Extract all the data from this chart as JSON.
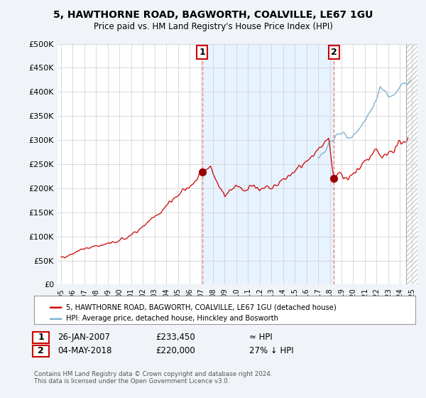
{
  "title": "5, HAWTHORNE ROAD, BAGWORTH, COALVILLE, LE67 1GU",
  "subtitle": "Price paid vs. HM Land Registry's House Price Index (HPI)",
  "ylim": [
    0,
    500000
  ],
  "yticks": [
    0,
    50000,
    100000,
    150000,
    200000,
    250000,
    300000,
    350000,
    400000,
    450000,
    500000
  ],
  "ytick_labels": [
    "£0",
    "£50K",
    "£100K",
    "£150K",
    "£200K",
    "£250K",
    "£300K",
    "£350K",
    "£400K",
    "£450K",
    "£500K"
  ],
  "xlim_start": 1994.7,
  "xlim_end": 2025.5,
  "xtick_years": [
    1995,
    1996,
    1997,
    1998,
    1999,
    2000,
    2001,
    2002,
    2003,
    2004,
    2005,
    2006,
    2007,
    2008,
    2009,
    2010,
    2011,
    2012,
    2013,
    2014,
    2015,
    2016,
    2017,
    2018,
    2019,
    2020,
    2021,
    2022,
    2023,
    2024,
    2025
  ],
  "sale1_x": 2007.07,
  "sale1_y": 233450,
  "sale2_x": 2018.34,
  "sale2_y": 220000,
  "line_color_red": "#cc0000",
  "line_color_blue": "#7fb3d3",
  "vline_color": "#e88080",
  "shade_color": "#ddeeff",
  "background_color": "#f0f4f8",
  "plot_bg": "#ffffff",
  "hatch_color": "#cccccc",
  "legend_label_red": "5, HAWTHORNE ROAD, BAGWORTH, COALVILLE, LE67 1GU (detached house)",
  "legend_label_blue": "HPI: Average price, detached house, Hinckley and Bosworth",
  "annotation1_date": "26-JAN-2007",
  "annotation1_price": "£233,450",
  "annotation1_hpi": "≈ HPI",
  "annotation2_date": "04-MAY-2018",
  "annotation2_price": "£220,000",
  "annotation2_hpi": "27% ↓ HPI",
  "footer": "Contains HM Land Registry data © Crown copyright and database right 2024.\nThis data is licensed under the Open Government Licence v3.0."
}
